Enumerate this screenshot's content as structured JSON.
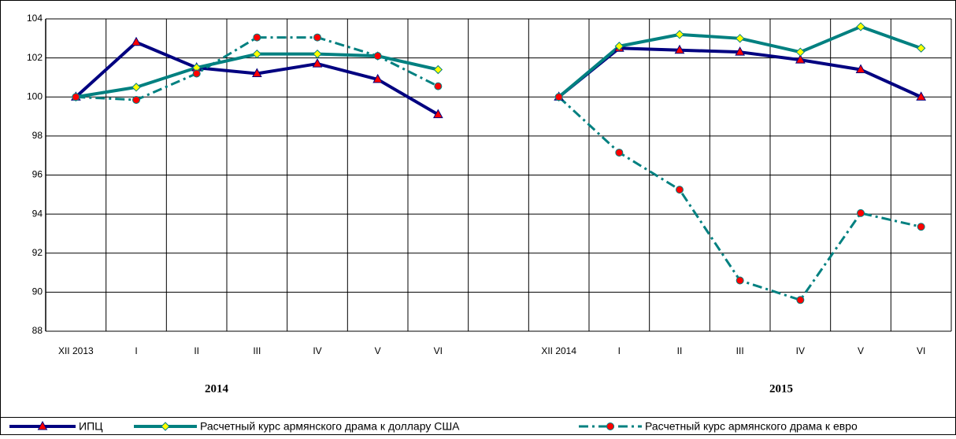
{
  "chart_data": {
    "type": "line",
    "categories": [
      "XII 2013",
      "I",
      "II",
      "III",
      "IV",
      "V",
      "VI",
      null,
      "XII 2014",
      "I",
      "II",
      "III",
      "IV",
      "V",
      "VI"
    ],
    "series": [
      {
        "name": "ИПЦ",
        "color": "#000080",
        "marker": "triangle",
        "marker_color": "#ff0000",
        "dash": "solid",
        "values": [
          100,
          102.8,
          101.5,
          101.2,
          101.7,
          100.9,
          99.1,
          null,
          100,
          102.5,
          102.4,
          102.3,
          101.9,
          101.4,
          100.0
        ]
      },
      {
        "name": "Расчетный курс армянского драма к доллару США",
        "color": "#008080",
        "marker": "diamond",
        "marker_color": "#ffff00",
        "dash": "solid",
        "values": [
          100,
          100.5,
          101.5,
          102.2,
          102.2,
          102.1,
          101.4,
          null,
          100,
          102.6,
          103.2,
          103.0,
          102.3,
          103.6,
          102.5
        ]
      },
      {
        "name": "Расчетный курс армянского драма к евро",
        "color": "#008080",
        "marker": "circle",
        "marker_color": "#ff0000",
        "dash": "dashdot",
        "values": [
          100,
          99.85,
          101.2,
          103.05,
          103.05,
          102.1,
          100.55,
          null,
          100,
          97.15,
          95.25,
          90.6,
          89.6,
          94.05,
          93.35
        ]
      }
    ],
    "annotations": [
      "2014",
      "2015"
    ],
    "ylim": [
      88,
      104
    ],
    "yticks": [
      88,
      90,
      92,
      94,
      96,
      98,
      100,
      102,
      104
    ],
    "grid": true,
    "legend": "bottom"
  }
}
